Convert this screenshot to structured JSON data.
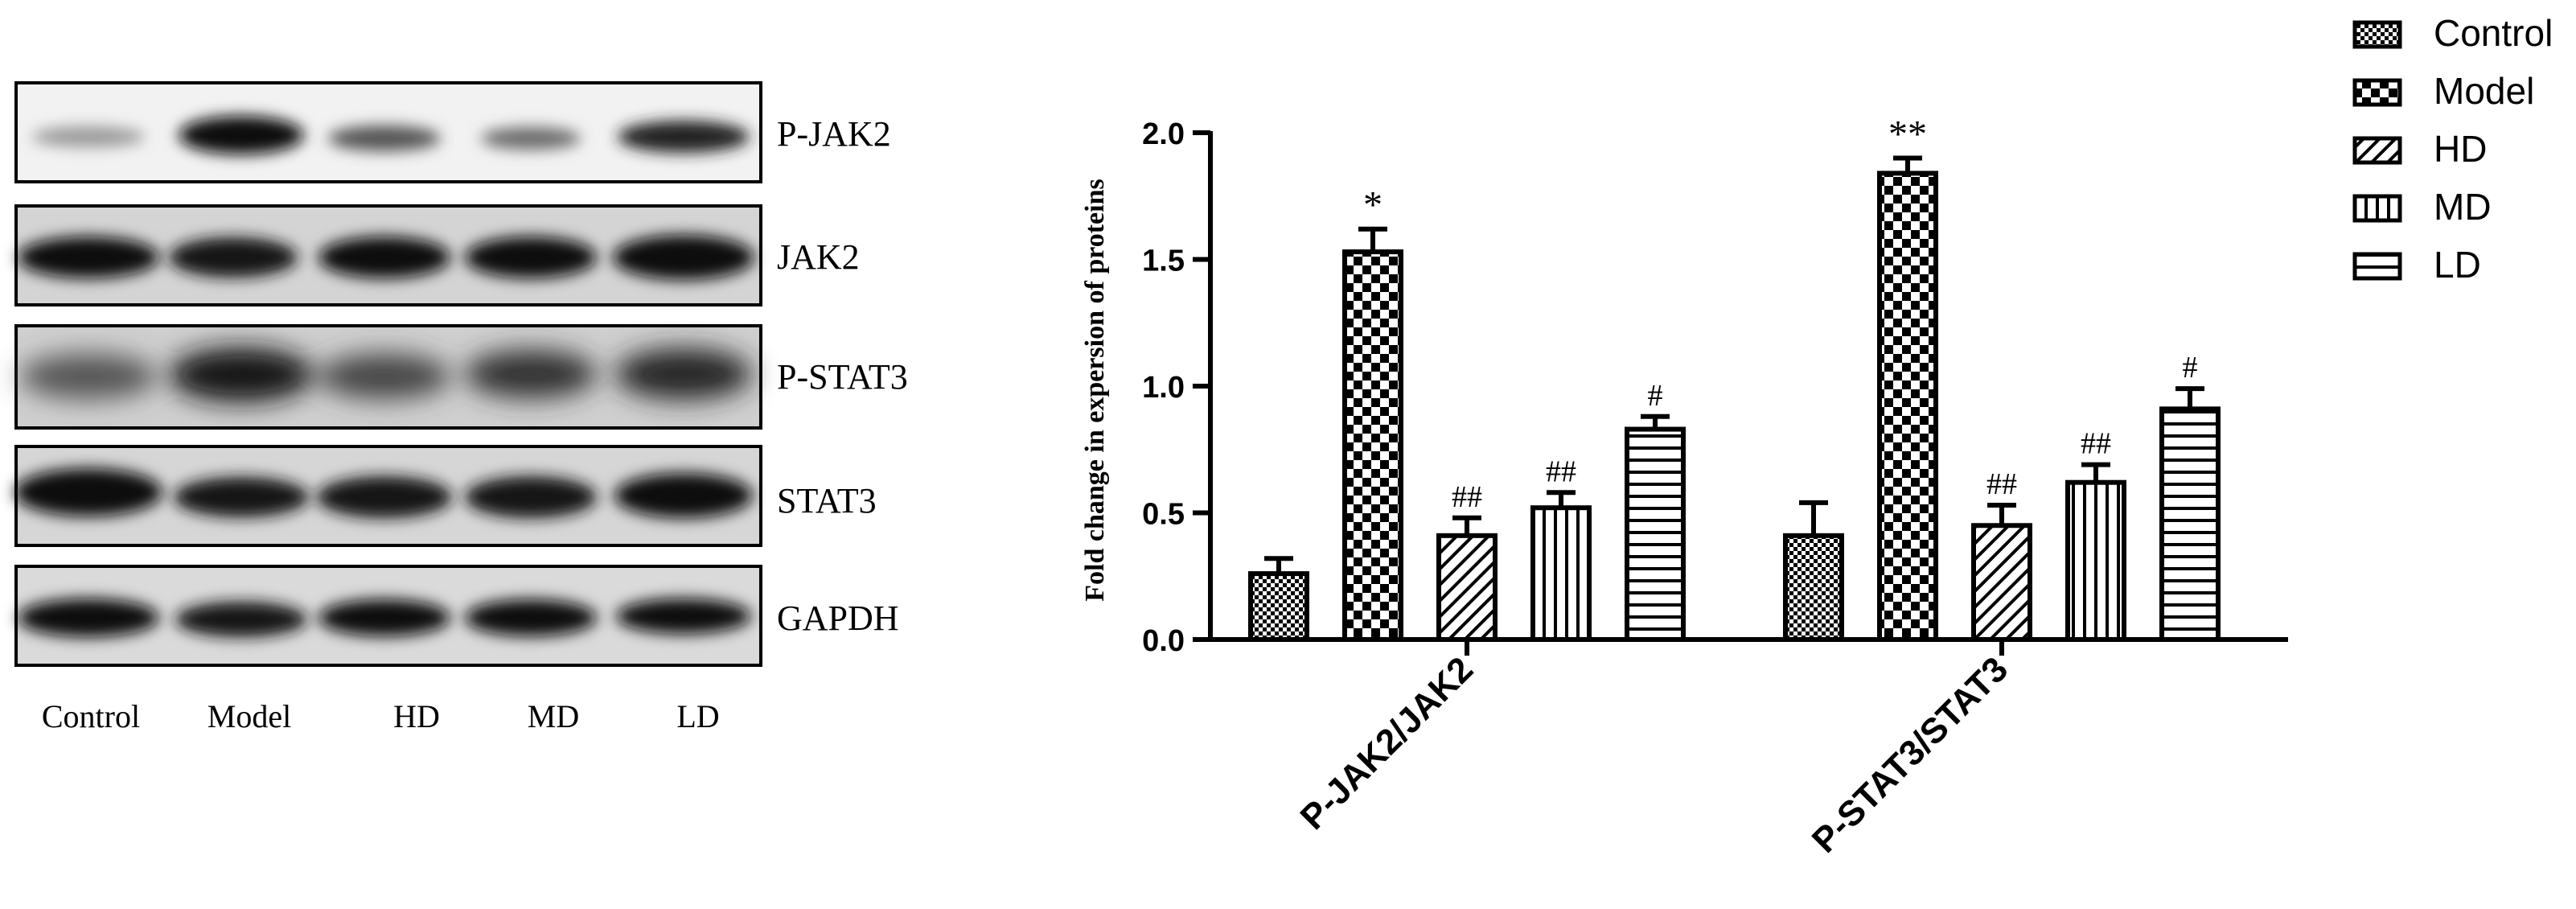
{
  "blot": {
    "proteins": [
      "P-JAK2",
      "JAK2",
      "P-STAT3",
      "STAT3",
      "GAPDH"
    ],
    "lanes": [
      "Control",
      "Model",
      "HD",
      "MD",
      "LD"
    ]
  },
  "chart_data": {
    "type": "bar",
    "categories": [
      "P-JAK2/JAK2",
      "P-STAT3/STAT3"
    ],
    "ylabel": "Fold change in expersion of proteins",
    "ylim": [
      0,
      2.0
    ],
    "yticks": [
      "0.0",
      "0.5",
      "1.0",
      "1.5",
      "2.0"
    ],
    "legend_position": "top-right",
    "series": [
      {
        "name": "Control",
        "pattern": "fine-check",
        "values": [
          0.26,
          0.41
        ],
        "errors": [
          0.06,
          0.13
        ],
        "annotations": [
          "",
          ""
        ]
      },
      {
        "name": "Model",
        "pattern": "checkerboard",
        "values": [
          1.53,
          1.84
        ],
        "errors": [
          0.09,
          0.06
        ],
        "annotations": [
          "*",
          "**"
        ]
      },
      {
        "name": "HD",
        "pattern": "diagonal-hatch",
        "values": [
          0.41,
          0.45
        ],
        "errors": [
          0.07,
          0.08
        ],
        "annotations": [
          "##",
          "##"
        ]
      },
      {
        "name": "MD",
        "pattern": "vertical-lines",
        "values": [
          0.52,
          0.62
        ],
        "errors": [
          0.06,
          0.07
        ],
        "annotations": [
          "##",
          "##"
        ]
      },
      {
        "name": "LD",
        "pattern": "horizontal-lines",
        "values": [
          0.83,
          0.91
        ],
        "errors": [
          0.05,
          0.08
        ],
        "annotations": [
          "#",
          "#"
        ]
      }
    ]
  }
}
